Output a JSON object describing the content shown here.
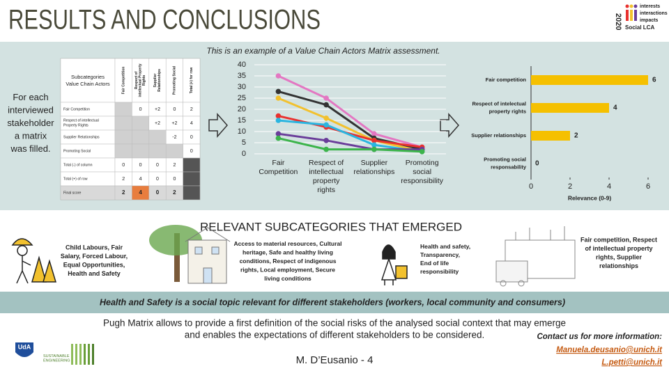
{
  "header": {
    "title": "RESULTS AND CONCLUSIONS",
    "logo_year": "2020",
    "logo_lines": [
      "interests",
      "interactions",
      "impacts"
    ],
    "logo_name": "Social LCA"
  },
  "assessment": {
    "caption": "This is an example of a Value Chain Actors Matrix assessment.",
    "left_note": "For each\ninterviewed\nstakeholder\na matrix\nwas filled.",
    "table": {
      "header": [
        "Subcategories\nValue Chain Actors",
        "Fair Competition",
        "Respect of\nintellectual Property\nRights",
        "Supplier\nRelationships",
        "Promoting Social",
        "Total (+) for row"
      ],
      "rows": [
        [
          "Fair Competition",
          null,
          "0",
          "+2",
          "0",
          "2"
        ],
        [
          "Respect of intellectual\nProperty Rights",
          null,
          null,
          "+2",
          "+2",
          "4"
        ],
        [
          "Supplier Relationships",
          null,
          null,
          null,
          "-2",
          "0"
        ],
        [
          "Promoting Social",
          null,
          null,
          null,
          null,
          "0"
        ],
        [
          "Total (-) of column",
          "0",
          "0",
          "0",
          "2",
          null
        ],
        [
          "Total (+) of row",
          "2",
          "4",
          "0",
          "0",
          null
        ],
        [
          "Final score",
          "2",
          "4",
          "0",
          "2",
          null
        ]
      ]
    }
  },
  "chart_data": [
    {
      "type": "line",
      "categories": [
        "Fair\nCompetition",
        "Respect of\nintellectual\nproperty\nrights",
        "Supplier\nrelationships",
        "Promoting\nsocial\nresponsibility"
      ],
      "series": [
        {
          "color": "#e377c2",
          "values": [
            35,
            25,
            9,
            3
          ]
        },
        {
          "color": "#333333",
          "values": [
            28,
            22,
            7,
            2
          ]
        },
        {
          "color": "#f2c12e",
          "values": [
            25,
            16,
            6,
            1
          ]
        },
        {
          "color": "#e8312f",
          "values": [
            17,
            12,
            6,
            3
          ]
        },
        {
          "color": "#2ab5e0",
          "values": [
            15,
            13,
            4,
            1
          ]
        },
        {
          "color": "#6a3d9a",
          "values": [
            9,
            6,
            2,
            2
          ]
        },
        {
          "color": "#3cb44b",
          "values": [
            7,
            2,
            2,
            1
          ]
        }
      ],
      "ylim": [
        0,
        40
      ],
      "yticks": [
        0,
        5,
        10,
        15,
        20,
        25,
        30,
        35,
        40
      ],
      "grid": true
    },
    {
      "type": "hbar",
      "categories": [
        "Fair competition",
        "Respect of intelectual\nproperty rights",
        "Supplier relationships",
        "Promoting social\nresponsability"
      ],
      "values": [
        6,
        4,
        2,
        0
      ],
      "color": "#f5c000",
      "xlabel": "Relevance (0-9)",
      "xlim": [
        0,
        6.5
      ],
      "xticks": [
        0,
        2,
        4,
        6
      ]
    }
  ],
  "subcategories": {
    "heading": "RELEVANT SUBCATEGORIES THAT EMERGED",
    "items": [
      "Child Labours, Fair\nSalary, Forced Labour,\nEqual Opportunities,\nHealth and Safety",
      "Access to material resources, Cultural\nheritage, Safe and healthy living\nconditions, Respect of indigenous\nrights, Local employment, Secure\nliving conditions",
      "Health and safety,\nTransparency,\nEnd of life\nresponsibility",
      "Fair competition, Respect\nof intellectual property\nrights, Supplier\nrelationships"
    ]
  },
  "banner": "Health and Safety is a social topic relevant for different stakeholders (workers, local community and consumers)",
  "conclusion": "Pugh Matrix allows to provide a first definition of the social risks of the analysed social context that may emerge\nand enables the expectations of different stakeholders to be considered.",
  "contact": {
    "label": "Contact us for more information:",
    "emails": [
      "Manuela.deusanio@unich.it",
      "L.petti@unich.it"
    ]
  },
  "footer": {
    "author": "M. D’Eusanio - 4",
    "logo_uda": "UdA",
    "logo_se": "SUSTAINABLE\nENGINEERING"
  }
}
